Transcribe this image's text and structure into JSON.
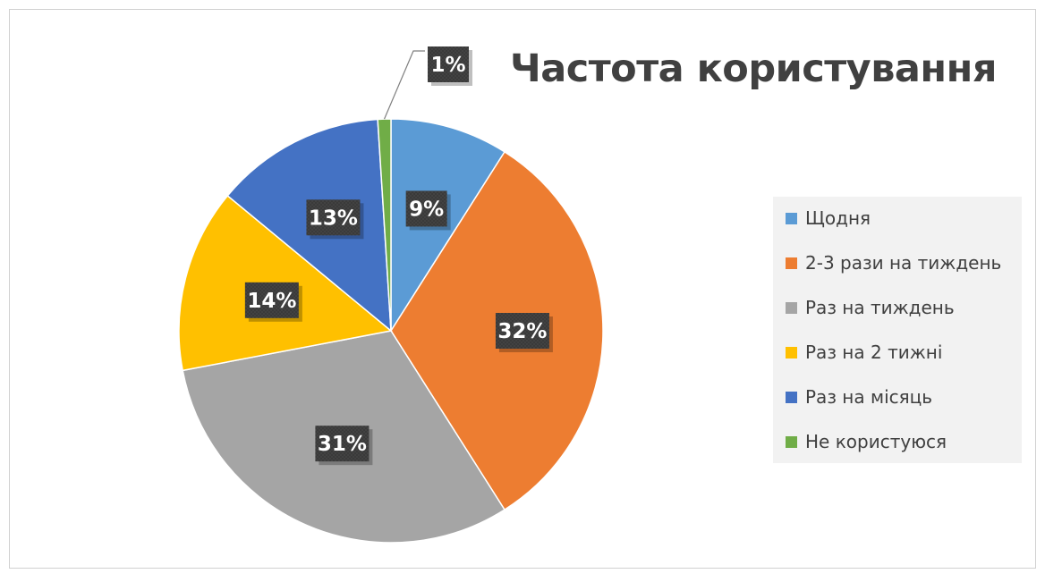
{
  "chart_data": {
    "type": "pie",
    "title": "Частота користування",
    "legend_position": "right",
    "categories": [
      "Щодня",
      "2-3 рази на тиждень",
      "Раз на тиждень",
      "Раз на 2 тижні",
      "Раз на місяць",
      "Не користуюся"
    ],
    "values": [
      9,
      32,
      31,
      14,
      13,
      1
    ],
    "data_labels": [
      "9%",
      "32%",
      "31%",
      "14%",
      "13%",
      "1%"
    ],
    "colors": [
      "#5B9BD5",
      "#ED7D31",
      "#A5A5A5",
      "#FFC000",
      "#4472C4",
      "#70AD47"
    ]
  }
}
